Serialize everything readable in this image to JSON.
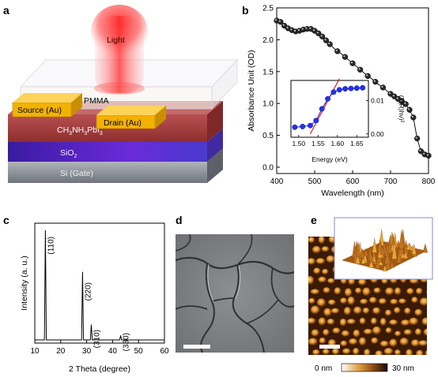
{
  "panels": {
    "a": {
      "letter": "a",
      "light_label": "Light",
      "pmma_label": "PMMA",
      "source_label": "Source (Au)",
      "drain_label": "Drain (Au)",
      "perovskite_label_parts": [
        "CH",
        "3",
        "NH",
        "3",
        "PbI",
        "3"
      ],
      "sio2_parts": [
        "SiO",
        "2"
      ],
      "si_label": "Si (Gate)",
      "colors": {
        "light": "#ff3b3b",
        "gold": "#f2b203",
        "perovskite": "#a43c3c",
        "sio2": "#5a22c8",
        "si": "#7a7e86"
      }
    },
    "b": {
      "letter": "b",
      "xlabel": "Wavelength (nm)",
      "ylabel": "Absorbance Unit (OD)",
      "inset_xlabel": "Energy (eV)",
      "inset_ylabel": "(F(R)hν)²",
      "xticks": [
        "400",
        "500",
        "600",
        "700",
        "800"
      ],
      "yticks": [
        "0.0",
        "0.5",
        "1.0",
        "1.5",
        "2.0",
        "2.5"
      ],
      "inset_xticks": [
        "1.50",
        "1.55",
        "1.60",
        "1.65"
      ],
      "inset_yticks": [
        "0.00",
        "0.01"
      ]
    },
    "c": {
      "letter": "c",
      "xlabel": "2 Theta (degree)",
      "ylabel": "Intensity (a. u.)",
      "xticks": [
        "10",
        "20",
        "30",
        "40",
        "50",
        "60"
      ],
      "peak_labels": [
        "(110)",
        "(220)",
        "(310)",
        "(330)"
      ]
    },
    "d": {
      "letter": "d"
    },
    "e": {
      "letter": "e",
      "scale_min": "0 nm",
      "scale_max": "30 nm"
    }
  },
  "chart_data": [
    {
      "type": "scatter",
      "panel": "b",
      "xlabel": "Wavelength (nm)",
      "ylabel": "Absorbance Unit (OD)",
      "xlim": [
        400,
        800
      ],
      "ylim": [
        -0.1,
        2.5
      ],
      "series": [
        {
          "x": [
            400,
            410,
            420,
            430,
            440,
            450,
            460,
            470,
            480,
            490,
            500,
            510,
            520,
            530,
            540,
            550,
            560,
            570,
            580,
            590,
            600,
            610,
            620,
            630,
            640,
            650,
            660,
            670,
            680,
            690,
            700,
            710,
            720,
            730,
            740,
            750,
            760,
            770,
            780,
            790,
            800
          ],
          "values": [
            2.3,
            2.28,
            2.22,
            2.18,
            2.15,
            2.13,
            2.14,
            2.16,
            2.17,
            2.17,
            2.14,
            2.1,
            2.05,
            1.99,
            1.93,
            1.87,
            1.82,
            1.78,
            1.73,
            1.68,
            1.63,
            1.58,
            1.53,
            1.48,
            1.43,
            1.39,
            1.34,
            1.29,
            1.25,
            1.2,
            1.15,
            1.11,
            1.07,
            1.03,
            0.99,
            0.9,
            0.78,
            0.45,
            0.25,
            0.2,
            0.18
          ]
        }
      ]
    },
    {
      "type": "scatter",
      "panel": "b-inset",
      "xlabel": "Energy (eV)",
      "ylabel": "(F(R)hν)²",
      "xlim": [
        1.48,
        1.68
      ],
      "ylim": [
        -0.001,
        0.016
      ],
      "series": [
        {
          "x": [
            1.49,
            1.51,
            1.53,
            1.545,
            1.56,
            1.575,
            1.59,
            1.605,
            1.62,
            1.635,
            1.65,
            1.665
          ],
          "values": [
            0.002,
            0.0022,
            0.0025,
            0.004,
            0.0075,
            0.0105,
            0.0125,
            0.0132,
            0.0135,
            0.0136,
            0.0137,
            0.0138
          ]
        },
        {
          "type": "line",
          "x": [
            1.53,
            1.605
          ],
          "values": [
            0.0,
            0.0165
          ]
        }
      ]
    },
    {
      "type": "line",
      "panel": "c",
      "xlabel": "2 Theta (degree)",
      "ylabel": "Intensity (a. u.)",
      "xlim": [
        10,
        60
      ],
      "ylim": [
        0,
        1.05
      ],
      "series": [
        {
          "x": [
            14.1,
            28.4,
            31.8,
            43.1
          ],
          "values": [
            1.0,
            0.62,
            0.14,
            0.04
          ]
        }
      ]
    }
  ]
}
